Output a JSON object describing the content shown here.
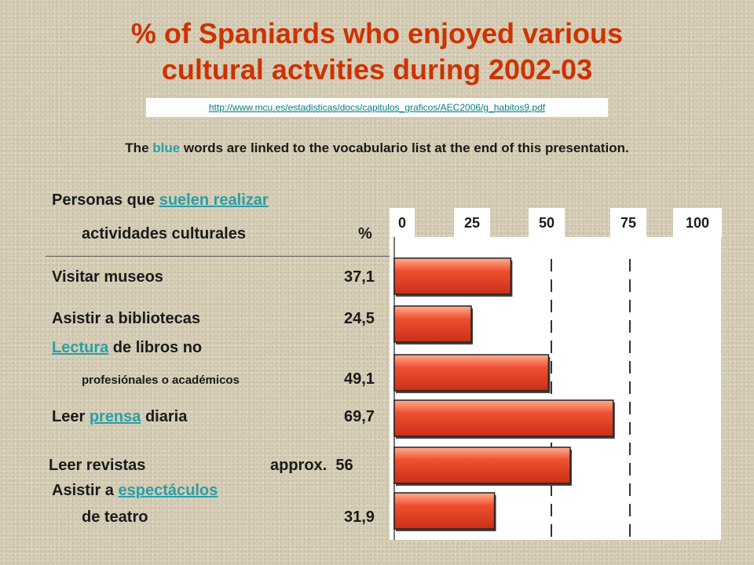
{
  "title": {
    "line1": "% of Spaniards who enjoyed various",
    "line2": "cultural actvities during 2002-03"
  },
  "source_url": "http://www.mcu.es/estadisticas/docs/capitulos_graficos/AEC2006/g_habitos9.pdf",
  "note": {
    "prefix": "The ",
    "blue_word": "blue",
    "suffix": " words are linked to the vocabulario list at the end of this presentation."
  },
  "header": {
    "line1_text": "Personas que ",
    "line1_link": "suelen realizar",
    "line2_text": "actividades culturales",
    "percent_label": "%"
  },
  "rows": {
    "museos": {
      "text": "Visitar museos",
      "value": "37,1"
    },
    "bibliotecas": {
      "text": "Asistir a bibliotecas",
      "value": "24,5"
    },
    "lectura": {
      "link": "Lectura",
      "text": " de libros no",
      "sub": "profesiónales o académicos",
      "value": "49,1"
    },
    "prensa": {
      "prefix": "Leer ",
      "link": "prensa",
      "suffix": " diaria",
      "value": "69,7"
    },
    "revistas": {
      "text": "Leer revistas",
      "value": "approx.  56"
    },
    "teatro": {
      "prefix": "Asistir a ",
      "link": "espectáculos",
      "sub": "de teatro",
      "value": "31,9"
    }
  },
  "chart_data": {
    "type": "bar",
    "orientation": "horizontal",
    "categories": [
      "Visitar museos",
      "Asistir a bibliotecas",
      "Lectura de libros no profesiónales o académicos",
      "Leer prensa diaria",
      "Leer revistas",
      "Asistir a espectáculos de teatro"
    ],
    "values": [
      37.1,
      24.5,
      49.1,
      69.7,
      56,
      31.9
    ],
    "xlim": [
      0,
      100
    ],
    "ticks": [
      "0",
      "25",
      "50",
      "75",
      "100"
    ],
    "tick_values": [
      0,
      25,
      50,
      75,
      100
    ],
    "grid": "dashed vertical at 50 and 75",
    "bar_color": "#f05030",
    "bar_highlight": "#ffb090"
  }
}
